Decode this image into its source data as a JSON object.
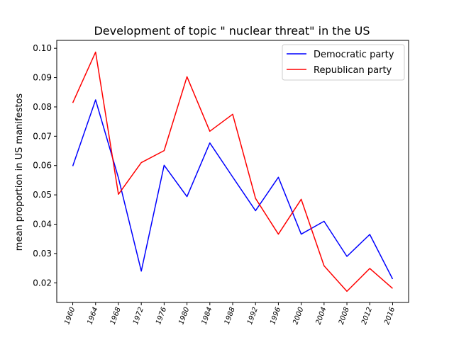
{
  "chart_data": {
    "type": "line",
    "title": "Development of topic \" nuclear threat\" in the US",
    "xlabel": "",
    "ylabel": "mean proportion in US manifestos",
    "x": [
      "1960",
      "1964",
      "1968",
      "1972",
      "1976",
      "1980",
      "1984",
      "1988",
      "1992",
      "1996",
      "2000",
      "2004",
      "2008",
      "2012",
      "2016"
    ],
    "ylim": [
      0.0133,
      0.1027
    ],
    "yticks": [
      "0.02",
      "0.03",
      "0.04",
      "0.05",
      "0.06",
      "0.07",
      "0.08",
      "0.09",
      "0.10"
    ],
    "ytick_values": [
      0.02,
      0.03,
      0.04,
      0.05,
      0.06,
      0.07,
      0.08,
      0.09,
      0.1
    ],
    "grid": false,
    "legend_position": "top-right",
    "series": [
      {
        "name": "Democratic party",
        "color": "#0000ff",
        "values": [
          0.0598,
          0.0824,
          0.0558,
          0.024,
          0.0601,
          0.0494,
          0.0677,
          0.0561,
          0.0446,
          0.056,
          0.0366,
          0.041,
          0.029,
          0.0365,
          0.0213
        ]
      },
      {
        "name": "Republican party",
        "color": "#ff0000",
        "values": [
          0.0814,
          0.0987,
          0.0502,
          0.061,
          0.0651,
          0.0903,
          0.0717,
          0.0775,
          0.0488,
          0.0366,
          0.0485,
          0.0258,
          0.0171,
          0.0249,
          0.0181
        ]
      }
    ]
  }
}
